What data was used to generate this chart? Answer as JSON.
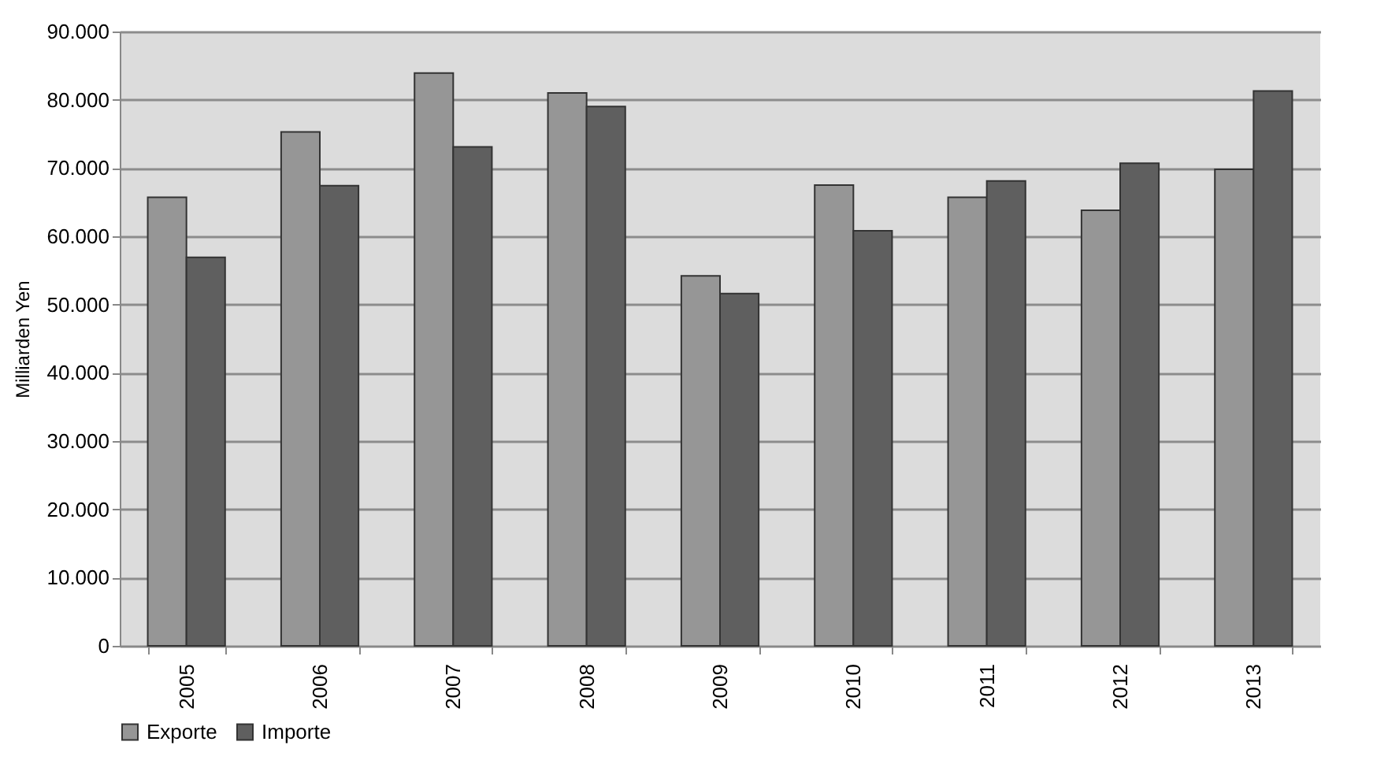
{
  "chart_data": {
    "type": "bar",
    "ylabel": "Milliarden Yen",
    "categories": [
      "2005",
      "2006",
      "2007",
      "2008",
      "2009",
      "2010",
      "2011",
      "2012",
      "2013"
    ],
    "series": [
      {
        "name": "Exporte",
        "color": "#969696",
        "values": [
          65700,
          75300,
          83900,
          81000,
          54200,
          67500,
          65700,
          63800,
          69800
        ]
      },
      {
        "name": "Importe",
        "color": "#5f5f5f",
        "values": [
          56900,
          67400,
          73100,
          79000,
          51600,
          60800,
          68100,
          70700,
          81300
        ]
      }
    ],
    "ylim": [
      0,
      90000
    ],
    "yticks": [
      {
        "value": 0,
        "label": "0"
      },
      {
        "value": 10000,
        "label": "10.000"
      },
      {
        "value": 20000,
        "label": "20.000"
      },
      {
        "value": 30000,
        "label": "30.000"
      },
      {
        "value": 40000,
        "label": "40.000"
      },
      {
        "value": 50000,
        "label": "50.000"
      },
      {
        "value": 60000,
        "label": "60.000"
      },
      {
        "value": 70000,
        "label": "70.000"
      },
      {
        "value": 80000,
        "label": "80.000"
      },
      {
        "value": 90000,
        "label": "90.000"
      }
    ],
    "grid": "y",
    "legend": "bottom"
  }
}
